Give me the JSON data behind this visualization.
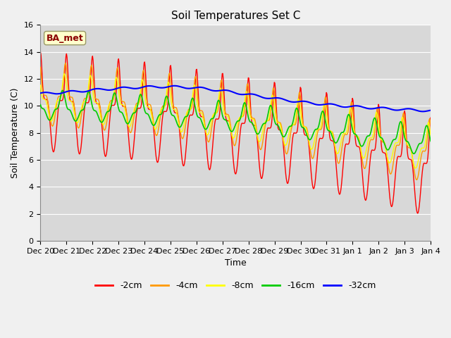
{
  "title": "Soil Temperatures Set C",
  "xlabel": "Time",
  "ylabel": "Soil Temperature (C)",
  "ylim": [
    0,
    16
  ],
  "yticks": [
    0,
    2,
    4,
    6,
    8,
    10,
    12,
    14,
    16
  ],
  "xtick_labels": [
    "Dec 20",
    "Dec 21",
    "Dec 22",
    "Dec 23",
    "Dec 24",
    "Dec 25",
    "Dec 26",
    "Dec 27",
    "Dec 28",
    "Dec 29",
    "Dec 30",
    "Dec 31",
    "Jan 1",
    "Jan 2",
    "Jan 3",
    "Jan 4"
  ],
  "series_labels": [
    "-2cm",
    "-4cm",
    "-8cm",
    "-16cm",
    "-32cm"
  ],
  "series_colors": [
    "#ff0000",
    "#ff9900",
    "#ffff00",
    "#00cc00",
    "#0000ff"
  ],
  "legend_label": "BA_met",
  "figsize": [
    6.4,
    4.8
  ],
  "dpi": 100,
  "fig_bg": "#f0f0f0",
  "ax_bg": "#d8d8d8",
  "title_fontsize": 11,
  "label_fontsize": 9,
  "tick_fontsize": 8,
  "legend_fontsize": 9
}
